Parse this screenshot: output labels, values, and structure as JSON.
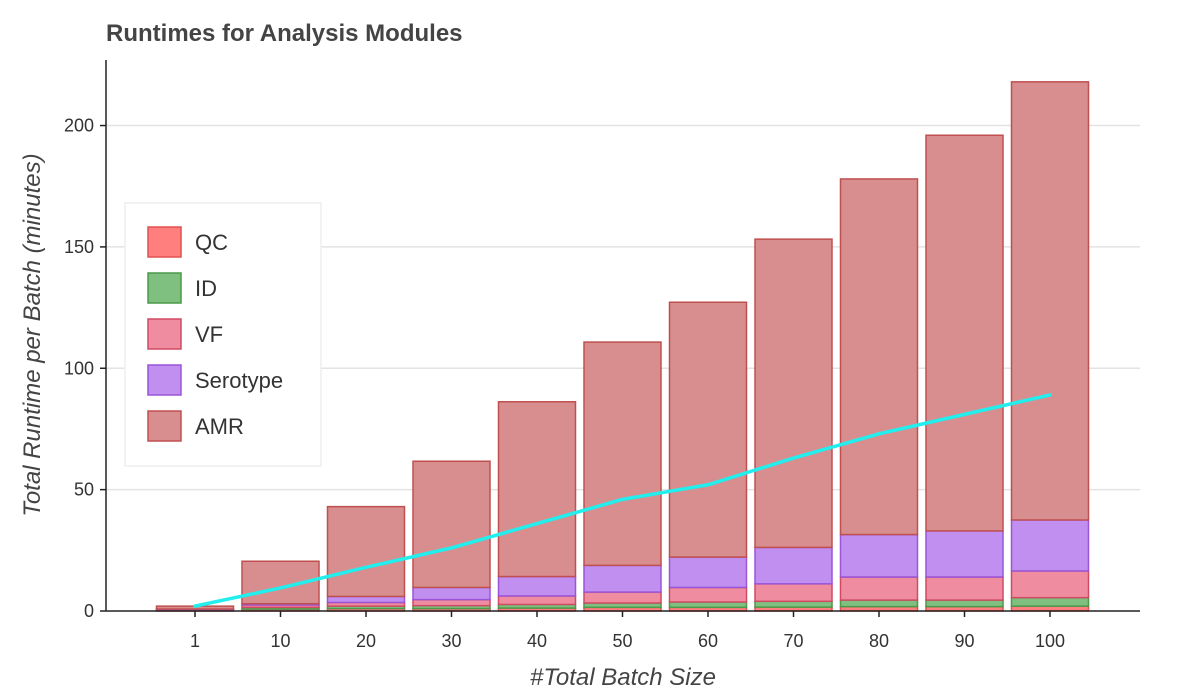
{
  "chart_data": {
    "type": "bar",
    "stacked": true,
    "title": "Runtimes for Analysis Modules",
    "xlabel": "#Total Batch Size",
    "ylabel": "Total Runtime per Batch (minutes)",
    "categories": [
      "1",
      "10",
      "20",
      "30",
      "40",
      "50",
      "60",
      "70",
      "80",
      "90",
      "100"
    ],
    "ylim": [
      0,
      227
    ],
    "yticks": [
      0,
      50,
      100,
      150,
      200
    ],
    "grid": true,
    "legend_position": "left-middle",
    "series": [
      {
        "name": "QC",
        "color": "#ff7f7f",
        "edge": "#e05050",
        "values": [
          0.2,
          0.8,
          1,
          1,
          1.2,
          1.5,
          1.5,
          1.6,
          1.8,
          1.8,
          2
        ]
      },
      {
        "name": "ID",
        "color": "#7fbf7f",
        "edge": "#4a9a4a",
        "values": [
          0.1,
          0.7,
          1,
          1.2,
          1.5,
          1.8,
          2.2,
          2.4,
          2.7,
          2.7,
          3.5
        ]
      },
      {
        "name": "VF",
        "color": "#f08ca0",
        "edge": "#d04a64",
        "values": [
          0.3,
          1,
          1.5,
          2.5,
          3.5,
          4.5,
          6,
          7.2,
          9.5,
          9.5,
          11
        ]
      },
      {
        "name": "Serotype",
        "color": "#c08ff0",
        "edge": "#9a55d8",
        "values": [
          0.2,
          0.5,
          2.5,
          5,
          8,
          11,
          12.5,
          15,
          17.5,
          19,
          21
        ]
      },
      {
        "name": "AMR",
        "color": "#d88e8e",
        "edge": "#c05050",
        "values": [
          1.2,
          17.5,
          37,
          52,
          72,
          92,
          105,
          127,
          146.5,
          163,
          180.5
        ]
      }
    ],
    "line": {
      "color": "#22eeee",
      "values": [
        2,
        9.5,
        18,
        26,
        36,
        46,
        52,
        63,
        73,
        81,
        89
      ]
    }
  }
}
